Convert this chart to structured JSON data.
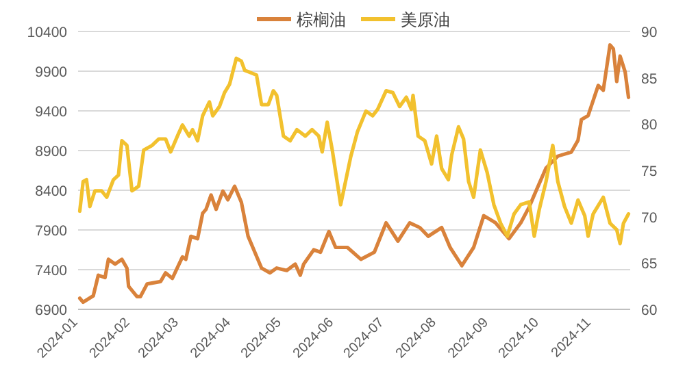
{
  "chart_data": {
    "type": "line",
    "legend": "top",
    "grid": "y",
    "line_style": "solid",
    "marker": "none",
    "xlim": [
      "2024-01-01",
      "2024-11-24"
    ],
    "xticks": [
      {
        "value": "2024-01-01",
        "label": "2024-01"
      },
      {
        "value": "2024-02-01",
        "label": "2024-02"
      },
      {
        "value": "2024-03-01",
        "label": "2024-03"
      },
      {
        "value": "2024-04-01",
        "label": "2024-04"
      },
      {
        "value": "2024-05-01",
        "label": "2024-05"
      },
      {
        "value": "2024-06-01",
        "label": "2024-06"
      },
      {
        "value": "2024-07-01",
        "label": "2024-07"
      },
      {
        "value": "2024-08-01",
        "label": "2024-08"
      },
      {
        "value": "2024-09-01",
        "label": "2024-09"
      },
      {
        "value": "2024-10-01",
        "label": "2024-10"
      },
      {
        "value": "2024-11-01",
        "label": "2024-11"
      }
    ],
    "ylim": [
      6900,
      10400
    ],
    "yticks": [
      6900,
      7400,
      7900,
      8400,
      8900,
      9400,
      9900,
      10400
    ],
    "y2lim": [
      60,
      90
    ],
    "y2ticks": [
      60,
      65,
      70,
      75,
      80,
      85,
      90
    ],
    "series": [
      {
        "name": "棕榈油",
        "color": "#d9823b",
        "x": [
          "2024-01-02",
          "2024-01-04",
          "2024-01-10",
          "2024-01-13",
          "2024-01-17",
          "2024-01-19",
          "2024-01-23",
          "2024-01-27",
          "2024-01-30",
          "2024-01-31",
          "2024-02-05",
          "2024-02-07",
          "2024-02-11",
          "2024-02-19",
          "2024-02-22",
          "2024-02-26",
          "2024-03-03",
          "2024-03-05",
          "2024-03-08",
          "2024-03-12",
          "2024-03-15",
          "2024-03-17",
          "2024-03-20",
          "2024-03-23",
          "2024-03-27",
          "2024-03-30",
          "2024-04-03",
          "2024-04-07",
          "2024-04-11",
          "2024-04-15",
          "2024-04-19",
          "2024-04-24",
          "2024-04-28",
          "2024-05-04",
          "2024-05-09",
          "2024-05-12",
          "2024-05-14",
          "2024-05-20",
          "2024-05-24",
          "2024-05-29",
          "2024-06-02",
          "2024-06-09",
          "2024-06-17",
          "2024-06-25",
          "2024-07-02",
          "2024-07-09",
          "2024-07-16",
          "2024-07-22",
          "2024-07-27",
          "2024-08-04",
          "2024-08-09",
          "2024-08-16",
          "2024-08-23",
          "2024-08-29",
          "2024-09-05",
          "2024-09-13",
          "2024-09-20",
          "2024-09-25",
          "2024-09-29",
          "2024-10-05",
          "2024-10-12",
          "2024-10-20",
          "2024-10-24",
          "2024-10-26",
          "2024-10-30",
          "2024-11-05",
          "2024-11-08",
          "2024-11-12",
          "2024-11-14",
          "2024-11-16",
          "2024-11-18",
          "2024-11-21",
          "2024-11-23"
        ],
        "values": [
          7040,
          6990,
          7070,
          7330,
          7300,
          7530,
          7470,
          7530,
          7420,
          7190,
          7060,
          7060,
          7220,
          7250,
          7360,
          7290,
          7560,
          7530,
          7820,
          7790,
          8110,
          8160,
          8340,
          8160,
          8390,
          8280,
          8450,
          8250,
          7820,
          7620,
          7420,
          7360,
          7420,
          7390,
          7470,
          7330,
          7470,
          7650,
          7620,
          7880,
          7680,
          7680,
          7530,
          7620,
          7990,
          7760,
          7990,
          7930,
          7820,
          7930,
          7680,
          7450,
          7680,
          8080,
          7990,
          7790,
          7990,
          8190,
          8390,
          8680,
          8830,
          8880,
          9030,
          9290,
          9340,
          9720,
          9660,
          10230,
          10180,
          9770,
          10090,
          9890,
          9570
        ]
      },
      {
        "name": "美原油",
        "color": "#f2c12e",
        "axis": "y2",
        "x": [
          "2024-01-02",
          "2024-01-04",
          "2024-01-06",
          "2024-01-08",
          "2024-01-11",
          "2024-01-15",
          "2024-01-18",
          "2024-01-22",
          "2024-01-25",
          "2024-01-27",
          "2024-01-30",
          "2024-02-02",
          "2024-02-06",
          "2024-02-09",
          "2024-02-14",
          "2024-02-18",
          "2024-02-22",
          "2024-02-25",
          "2024-02-29",
          "2024-03-03",
          "2024-03-07",
          "2024-03-09",
          "2024-03-12",
          "2024-03-15",
          "2024-03-19",
          "2024-03-21",
          "2024-03-25",
          "2024-03-28",
          "2024-03-31",
          "2024-04-04",
          "2024-04-07",
          "2024-04-09",
          "2024-04-12",
          "2024-04-16",
          "2024-04-19",
          "2024-04-23",
          "2024-04-26",
          "2024-04-28",
          "2024-05-02",
          "2024-05-06",
          "2024-05-10",
          "2024-05-15",
          "2024-05-19",
          "2024-05-23",
          "2024-05-25",
          "2024-05-28",
          "2024-05-31",
          "2024-06-05",
          "2024-06-11",
          "2024-06-15",
          "2024-06-20",
          "2024-06-24",
          "2024-06-27",
          "2024-07-02",
          "2024-07-06",
          "2024-07-10",
          "2024-07-14",
          "2024-07-17",
          "2024-07-18",
          "2024-07-21",
          "2024-07-25",
          "2024-07-29",
          "2024-08-01",
          "2024-08-04",
          "2024-08-08",
          "2024-08-10",
          "2024-08-14",
          "2024-08-17",
          "2024-08-20",
          "2024-08-23",
          "2024-08-27",
          "2024-08-31",
          "2024-09-04",
          "2024-09-08",
          "2024-09-12",
          "2024-09-16",
          "2024-09-20",
          "2024-09-25",
          "2024-09-28",
          "2024-10-01",
          "2024-10-05",
          "2024-10-09",
          "2024-10-12",
          "2024-10-16",
          "2024-10-20",
          "2024-10-24",
          "2024-10-28",
          "2024-10-30",
          "2024-11-02",
          "2024-11-08",
          "2024-11-12",
          "2024-11-16",
          "2024-11-18",
          "2024-11-20",
          "2024-11-23"
        ],
        "values": [
          70.6,
          73.8,
          74.0,
          71.1,
          72.8,
          72.8,
          72.1,
          74.0,
          74.5,
          78.2,
          77.7,
          72.8,
          73.3,
          77.2,
          77.7,
          78.4,
          78.4,
          77.0,
          78.7,
          79.9,
          78.7,
          79.4,
          78.2,
          80.9,
          82.4,
          80.9,
          81.9,
          83.4,
          84.3,
          87.1,
          86.8,
          85.8,
          85.6,
          85.3,
          82.1,
          82.1,
          83.6,
          83.1,
          78.7,
          78.2,
          79.4,
          78.7,
          79.4,
          78.7,
          77.0,
          80.2,
          77.2,
          71.3,
          76.5,
          79.2,
          81.4,
          80.9,
          81.6,
          83.6,
          83.4,
          81.9,
          82.9,
          81.6,
          83.1,
          78.7,
          78.2,
          75.7,
          78.7,
          75.2,
          74.0,
          76.7,
          79.7,
          78.4,
          73.8,
          72.1,
          77.2,
          74.8,
          71.3,
          69.3,
          67.9,
          70.3,
          71.3,
          71.6,
          67.9,
          70.8,
          73.8,
          77.7,
          73.8,
          71.1,
          69.3,
          71.8,
          70.1,
          67.9,
          70.3,
          72.1,
          69.3,
          68.6,
          67.1,
          69.3,
          70.3
        ]
      }
    ]
  }
}
